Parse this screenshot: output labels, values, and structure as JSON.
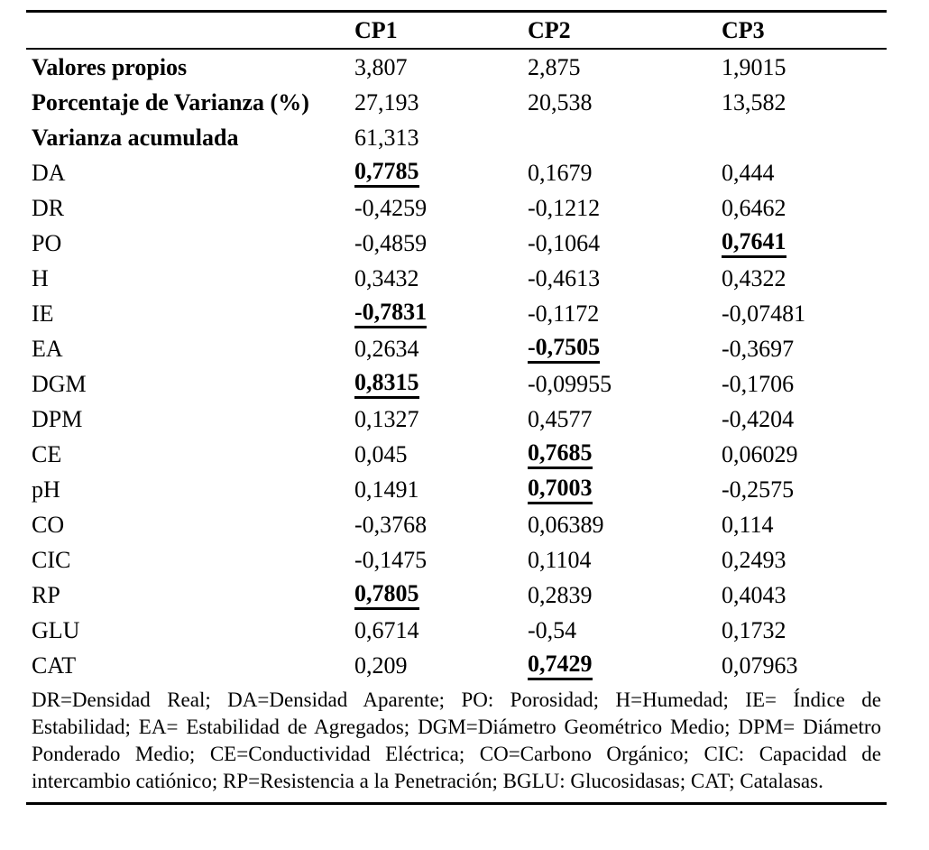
{
  "table": {
    "headers": [
      "CP1",
      "CP2",
      "CP3"
    ],
    "rows": [
      {
        "label": "Valores propios",
        "label_bold": true,
        "cells": [
          {
            "t": "3,807"
          },
          {
            "t": "2,875"
          },
          {
            "t": "1,9015"
          }
        ]
      },
      {
        "label": "Porcentaje de Varianza (%)",
        "label_bold": true,
        "cells": [
          {
            "t": "27,193"
          },
          {
            "t": "20,538"
          },
          {
            "t": "13,582"
          }
        ]
      },
      {
        "label": "Varianza acumulada",
        "label_bold": true,
        "cells": [
          {
            "t": "61,313"
          },
          {
            "t": ""
          },
          {
            "t": ""
          }
        ]
      },
      {
        "label": "DA",
        "cells": [
          {
            "t": "0,7785",
            "hl": true
          },
          {
            "t": "0,1679"
          },
          {
            "t": "0,444"
          }
        ]
      },
      {
        "label": "DR",
        "cells": [
          {
            "t": "-0,4259"
          },
          {
            "t": "-0,1212"
          },
          {
            "t": "0,6462"
          }
        ]
      },
      {
        "label": "PO",
        "cells": [
          {
            "t": "-0,4859"
          },
          {
            "t": "-0,1064"
          },
          {
            "t": "0,7641",
            "hl": true
          }
        ]
      },
      {
        "label": "H",
        "cells": [
          {
            "t": "0,3432"
          },
          {
            "t": "-0,4613"
          },
          {
            "t": "0,4322"
          }
        ]
      },
      {
        "label": "IE",
        "cells": [
          {
            "t": "-0,7831",
            "hl": true
          },
          {
            "t": "-0,1172"
          },
          {
            "t": "-0,07481"
          }
        ]
      },
      {
        "label": "EA",
        "cells": [
          {
            "t": "0,2634"
          },
          {
            "t": "-0,7505",
            "hl": true
          },
          {
            "t": "-0,3697"
          }
        ]
      },
      {
        "label": "DGM",
        "cells": [
          {
            "t": "0,8315",
            "hl": true
          },
          {
            "t": "-0,09955"
          },
          {
            "t": "-0,1706"
          }
        ]
      },
      {
        "label": "DPM",
        "cells": [
          {
            "t": "0,1327"
          },
          {
            "t": "0,4577"
          },
          {
            "t": "-0,4204"
          }
        ]
      },
      {
        "label": "CE",
        "cells": [
          {
            "t": "0,045"
          },
          {
            "t": "0,7685",
            "hl": true
          },
          {
            "t": "0,06029"
          }
        ]
      },
      {
        "label": "pH",
        "cells": [
          {
            "t": "0,1491"
          },
          {
            "t": "0,7003",
            "hl": true
          },
          {
            "t": "-0,2575"
          }
        ]
      },
      {
        "label": "CO",
        "cells": [
          {
            "t": "-0,3768"
          },
          {
            "t": "0,06389"
          },
          {
            "t": "0,114"
          }
        ]
      },
      {
        "label": "CIC",
        "cells": [
          {
            "t": "-0,1475"
          },
          {
            "t": "0,1104"
          },
          {
            "t": "0,2493"
          }
        ]
      },
      {
        "label": "RP",
        "cells": [
          {
            "t": "0,7805",
            "hl": true
          },
          {
            "t": "0,2839"
          },
          {
            "t": "0,4043"
          }
        ]
      },
      {
        "label": "GLU",
        "cells": [
          {
            "t": "0,6714"
          },
          {
            "t": "-0,54"
          },
          {
            "t": "0,1732"
          }
        ]
      },
      {
        "label": "CAT",
        "cells": [
          {
            "t": "0,209"
          },
          {
            "t": "0,7429",
            "hl": true
          },
          {
            "t": "0,07963"
          }
        ]
      }
    ],
    "footnote": "DR=Densidad Real; DA=Densidad Aparente; PO: Porosidad; H=Humedad; IE= Índice de Estabilidad; EA= Estabilidad de Agregados; DGM=Diámetro Geométrico Medio; DPM= Diámetro Ponderado Medio; CE=Conductividad Eléctrica; CO=Carbono Orgánico; CIC: Capacidad de intercambio catiónico; RP=Resistencia a la Penetración; BGLU: Glucosidasas; CAT; Catalasas."
  }
}
